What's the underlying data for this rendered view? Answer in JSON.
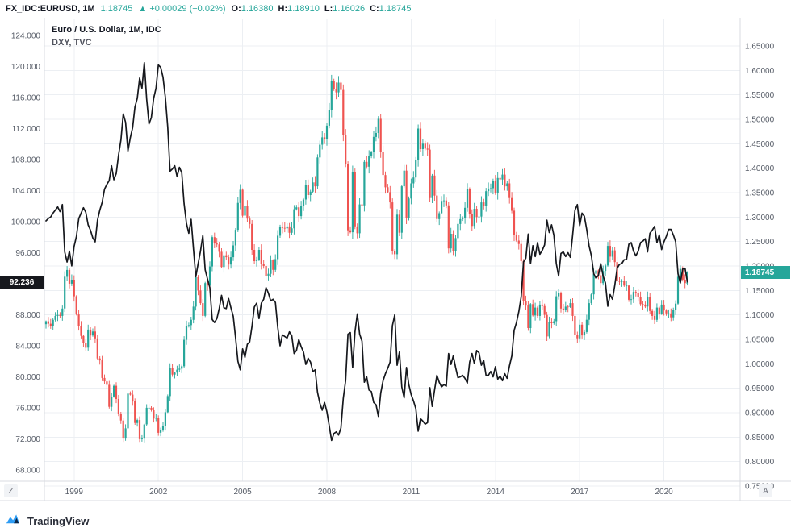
{
  "header": {
    "symbol": "FX_IDC:EURUSD, 1M",
    "last": "1.18745",
    "change": "▲ +0.00029 (+0.02%)",
    "o_label": "O:",
    "o": "1.16380",
    "h_label": "H:",
    "h": "1.18910",
    "l_label": "L:",
    "l": "1.16026",
    "c_label": "C:",
    "c": "1.18745"
  },
  "legend": {
    "main": "Euro / U.S. Dollar, 1M, IDC",
    "study": "DXY, TVC"
  },
  "left_axis": {
    "ticks": [
      "124.000",
      "120.000",
      "116.000",
      "112.000",
      "108.000",
      "104.000",
      "100.000",
      "96.000",
      "92.000",
      "88.000",
      "84.000",
      "80.000",
      "76.000",
      "72.000",
      "68.000"
    ],
    "price_label": "92.236"
  },
  "right_axis": {
    "ticks": [
      "1.65000",
      "1.60000",
      "1.55000",
      "1.50000",
      "1.45000",
      "1.40000",
      "1.35000",
      "1.30000",
      "1.25000",
      "1.20000",
      "1.15000",
      "1.10000",
      "1.05000",
      "1.00000",
      "0.95000",
      "0.90000",
      "0.85000",
      "0.80000",
      "0.75000"
    ],
    "price_label": "1.18745"
  },
  "x_axis": {
    "labels": [
      "1999",
      "2002",
      "2005",
      "2008",
      "2011",
      "2014",
      "2017",
      "2020"
    ]
  },
  "corner_buttons": {
    "bottom_left": "Z",
    "bottom_right": "A"
  },
  "footer": {
    "brand": "TradingView"
  },
  "colors": {
    "up": "#26a69a",
    "down": "#ef5350",
    "dxy_line": "#16181d",
    "grid": "#eceff3",
    "border": "#d8dbe0",
    "axis_text": "#555b66",
    "accent_teal": "#26a69a",
    "label_dark_bg": "#16181d"
  },
  "chart_data": {
    "type": "candlestick+line",
    "title": "Euro / U.S. Dollar, 1M, IDC",
    "overlay": "DXY, TVC",
    "interval": "monthly",
    "x_start": "1998-01",
    "x_end": "2020-11",
    "right_ylim": [
      0.75,
      1.65
    ],
    "left_ylim": [
      68,
      124
    ],
    "x_tick_years": [
      1999,
      2002,
      2005,
      2008,
      2011,
      2014,
      2017,
      2020
    ],
    "last_candle": {
      "o": 1.1638,
      "h": 1.1891,
      "l": 1.16026,
      "c": 1.18745
    },
    "last_dxy": 92.236,
    "series": [
      {
        "name": "EUR/USD",
        "type": "candle",
        "scale": "right",
        "monthly_close": [
          1.087,
          1.082,
          1.078,
          1.09,
          1.098,
          1.1,
          1.098,
          1.113,
          1.178,
          1.192,
          1.164,
          1.172,
          1.138,
          1.101,
          1.078,
          1.057,
          1.042,
          1.033,
          1.07,
          1.058,
          1.066,
          1.052,
          1.011,
          1.007,
          0.971,
          0.964,
          0.957,
          0.912,
          0.933,
          0.955,
          0.928,
          0.898,
          0.884,
          0.847,
          0.868,
          0.939,
          0.937,
          0.923,
          0.879,
          0.885,
          0.846,
          0.847,
          0.876,
          0.91,
          0.91,
          0.905,
          0.888,
          0.89,
          0.859,
          0.865,
          0.872,
          0.901,
          0.934,
          0.992,
          0.978,
          0.982,
          0.988,
          0.99,
          0.995,
          1.049,
          1.078,
          1.079,
          1.09,
          1.117,
          1.177,
          1.15,
          1.124,
          1.098,
          1.165,
          1.16,
          1.199,
          1.259,
          1.246,
          1.244,
          1.229,
          1.198,
          1.222,
          1.218,
          1.203,
          1.218,
          1.242,
          1.274,
          1.329,
          1.356,
          1.303,
          1.323,
          1.297,
          1.286,
          1.233,
          1.21,
          1.212,
          1.233,
          1.204,
          1.2,
          1.179,
          1.184,
          1.212,
          1.192,
          1.214,
          1.262,
          1.28,
          1.278,
          1.277,
          1.281,
          1.268,
          1.277,
          1.316,
          1.32,
          1.302,
          1.323,
          1.336,
          1.365,
          1.345,
          1.352,
          1.371,
          1.363,
          1.422,
          1.448,
          1.463,
          1.459,
          1.487,
          1.519,
          1.579,
          1.562,
          1.555,
          1.575,
          1.56,
          1.467,
          1.409,
          1.273,
          1.269,
          1.392,
          1.281,
          1.267,
          1.326,
          1.324,
          1.413,
          1.403,
          1.425,
          1.433,
          1.464,
          1.472,
          1.501,
          1.433,
          1.386,
          1.361,
          1.351,
          1.33,
          1.23,
          1.224,
          1.305,
          1.268,
          1.363,
          1.395,
          1.298,
          1.338,
          1.369,
          1.381,
          1.416,
          1.481,
          1.439,
          1.45,
          1.44,
          1.438,
          1.339,
          1.385,
          1.344,
          1.296,
          1.308,
          1.333,
          1.334,
          1.324,
          1.236,
          1.266,
          1.23,
          1.257,
          1.286,
          1.296,
          1.298,
          1.319,
          1.358,
          1.306,
          1.282,
          1.317,
          1.3,
          1.301,
          1.33,
          1.322,
          1.353,
          1.358,
          1.359,
          1.374,
          1.349,
          1.38,
          1.377,
          1.387,
          1.363,
          1.369,
          1.339,
          1.313,
          1.263,
          1.252,
          1.245,
          1.21,
          1.129,
          1.119,
          1.073,
          1.122,
          1.099,
          1.115,
          1.098,
          1.121,
          1.118,
          1.1,
          1.056,
          1.086,
          1.083,
          1.087,
          1.138,
          1.145,
          1.113,
          1.111,
          1.117,
          1.116,
          1.124,
          1.098,
          1.059,
          1.052,
          1.08,
          1.058,
          1.065,
          1.09,
          1.124,
          1.142,
          1.184,
          1.191,
          1.181,
          1.165,
          1.19,
          1.201,
          1.241,
          1.219,
          1.232,
          1.208,
          1.169,
          1.168,
          1.169,
          1.16,
          1.16,
          1.131,
          1.132,
          1.147,
          1.145,
          1.137,
          1.122,
          1.121,
          1.117,
          1.137,
          1.108,
          1.098,
          1.09,
          1.115,
          1.102,
          1.121,
          1.109,
          1.103,
          1.103,
          1.095,
          1.11,
          1.123,
          1.178,
          1.194,
          1.172,
          1.165,
          1.18745
        ]
      },
      {
        "name": "DXY",
        "type": "line",
        "scale": "left",
        "monthly_close": [
          100.1,
          100.4,
          100.6,
          101.1,
          101.5,
          101.9,
          101.3,
          102.2,
          96.1,
          94.8,
          96.2,
          94.3,
          96.8,
          98.1,
          100.4,
          101.1,
          101.8,
          101.2,
          99.6,
          98.9,
          97.9,
          97.4,
          100.2,
          101.5,
          102.5,
          104.2,
          104.8,
          105.3,
          107.2,
          105.4,
          106.2,
          108.6,
          110.5,
          113.9,
          112.8,
          109.1,
          110.8,
          112.1,
          114.8,
          115.9,
          118.5,
          117.2,
          120.5,
          115.8,
          112.6,
          113.4,
          115.9,
          117.2,
          120.2,
          119.9,
          118.6,
          116.0,
          112.2,
          106.5,
          106.8,
          107.2,
          105.8,
          107.0,
          106.3,
          102.3,
          99.8,
          98.5,
          100.3,
          96.5,
          92.9,
          94.6,
          96.2,
          98.2,
          93.8,
          92.6,
          91.5,
          87.4,
          87.0,
          87.5,
          88.8,
          90.5,
          88.9,
          88.8,
          90.1,
          88.9,
          87.8,
          85.0,
          82.0,
          80.9,
          83.6,
          82.5,
          84.2,
          84.5,
          86.5,
          89.0,
          89.5,
          87.5,
          89.5,
          90.0,
          91.5,
          90.8,
          89.8,
          90.0,
          89.6,
          86.4,
          84.0,
          85.4,
          85.2,
          85.0,
          85.8,
          85.3,
          83.0,
          83.4,
          84.8,
          83.9,
          83.2,
          81.6,
          82.4,
          81.9,
          80.7,
          80.9,
          78.0,
          76.6,
          75.7,
          76.7,
          75.5,
          73.7,
          71.8,
          72.7,
          72.9,
          72.5,
          73.4,
          77.2,
          79.5,
          85.5,
          85.7,
          81.2,
          85.8,
          88.1,
          85.5,
          84.6,
          79.3,
          80.0,
          78.3,
          78.1,
          76.7,
          76.4,
          74.9,
          77.9,
          79.5,
          80.4,
          81.1,
          81.9,
          86.6,
          88.0,
          81.5,
          83.2,
          78.7,
          77.3,
          81.2,
          79.0,
          77.7,
          76.9,
          75.9,
          73.0,
          74.6,
          74.3,
          73.9,
          74.1,
          78.6,
          76.2,
          78.3,
          80.2,
          79.3,
          78.7,
          79.0,
          78.8,
          83.0,
          81.6,
          82.7,
          81.2,
          79.9,
          80.0,
          80.2,
          79.8,
          79.2,
          81.9,
          83.0,
          81.7,
          83.4,
          83.1,
          81.5,
          82.1,
          80.2,
          80.2,
          80.7,
          80.0,
          81.3,
          79.7,
          80.1,
          79.5,
          80.4,
          79.8,
          81.4,
          82.7,
          86.0,
          87.0,
          88.4,
          90.3,
          94.8,
          95.3,
          98.4,
          94.6,
          96.9,
          95.5,
          97.3,
          95.8,
          96.3,
          97.0,
          100.2,
          98.6,
          99.6,
          98.2,
          94.6,
          93.0,
          95.9,
          96.1,
          95.5,
          96.0,
          95.4,
          98.3,
          101.5,
          102.2,
          99.5,
          101.1,
          100.7,
          99.0,
          96.9,
          95.6,
          93.3,
          92.7,
          93.1,
          94.6,
          93.0,
          92.1,
          89.1,
          90.6,
          90.0,
          91.8,
          94.0,
          94.5,
          94.6,
          95.1,
          95.1,
          97.1,
          97.3,
          96.2,
          95.6,
          96.2,
          97.3,
          97.5,
          97.8,
          96.1,
          98.5,
          98.9,
          99.4,
          97.3,
          98.3,
          96.4,
          97.4,
          98.1,
          99.0,
          99.0,
          98.3,
          97.4,
          93.3,
          92.1,
          93.9,
          94.0,
          92.236
        ]
      }
    ]
  }
}
